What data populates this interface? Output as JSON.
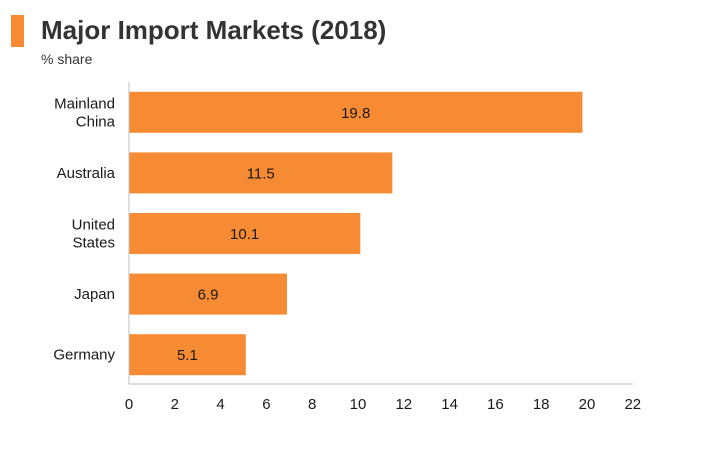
{
  "header": {
    "title": "Major Import Markets (2018)",
    "subtitle": "% share"
  },
  "colors": {
    "accent": "#f78b33",
    "bar": "#f78b33",
    "axis": "#bfbfbf",
    "text": "#1a1a1a"
  },
  "chart_data": {
    "type": "bar",
    "orientation": "horizontal",
    "title": "Major Import Markets (2018)",
    "subtitle": "% share",
    "categories": [
      [
        "Mainland",
        "China"
      ],
      [
        "Australia"
      ],
      [
        "United",
        "States"
      ],
      [
        "Japan"
      ],
      [
        "Germany"
      ]
    ],
    "values": [
      19.8,
      11.5,
      10.1,
      6.9,
      5.1
    ],
    "value_labels": [
      "19.8",
      "11.5",
      "10.1",
      "6.9",
      "5.1"
    ],
    "xlim": [
      0,
      22
    ],
    "x_ticks": [
      "0",
      "2",
      "4",
      "6",
      "8",
      "10",
      "12",
      "14",
      "16",
      "18",
      "20",
      "22"
    ],
    "grid": false,
    "legend": "none"
  }
}
